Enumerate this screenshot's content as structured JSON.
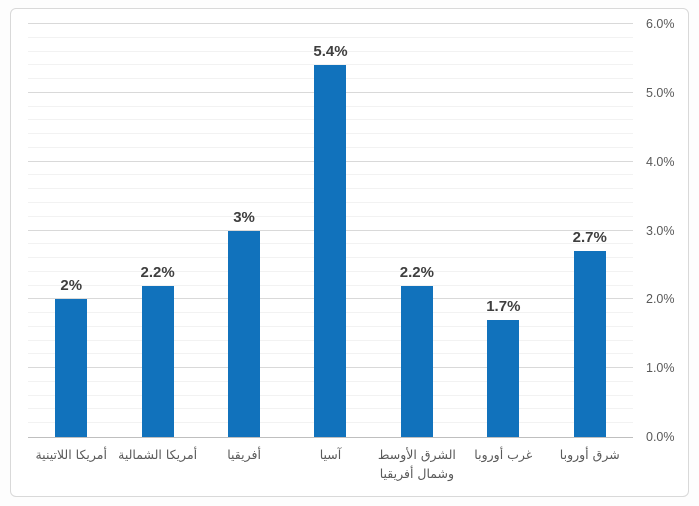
{
  "chart_data": {
    "type": "bar",
    "title": "",
    "xlabel": "",
    "ylabel": "",
    "categories": [
      "أمريكا اللاتينية",
      "أمريكا الشمالية",
      "أفريقيا",
      "آسيا",
      "الشرق الأوسط وشمال أفريقيا",
      "غرب أوروبا",
      "شرق أوروبا"
    ],
    "categories_lines": [
      [
        "أمريكا اللاتينية"
      ],
      [
        "أمريكا الشمالية"
      ],
      [
        "أفريقيا"
      ],
      [
        "آسيا"
      ],
      [
        "الشرق الأوسط",
        "وشمال أفريقيا"
      ],
      [
        "غرب أوروبا"
      ],
      [
        "شرق أوروبا"
      ]
    ],
    "values": [
      2.0,
      2.2,
      3.0,
      5.4,
      2.2,
      1.7,
      2.7
    ],
    "value_labels": [
      "2%",
      "2.2%",
      "3%",
      "5.4%",
      "2.2%",
      "1.7%",
      "2.7%"
    ],
    "ylim": [
      0,
      6
    ],
    "y_major_step": 1.0,
    "y_minor_step": 0.2,
    "y_tick_labels": [
      "0.0%",
      "1.0%",
      "2.0%",
      "3.0%",
      "4.0%",
      "5.0%",
      "6.0%"
    ],
    "y_axis_side": "right",
    "grid": "horizontal major and minor gridlines",
    "legend": "none",
    "text_direction": "rtl",
    "colors": {
      "bar": "#1172bc",
      "major_gridline": "#d9d9d9",
      "minor_gridline": "#f2f2f2",
      "axis_line": "#bfbfbf",
      "tick_label": "#595959",
      "value_label": "#3f3f3f",
      "frame_border": "#d9d9d9",
      "background": "#ffffff"
    }
  }
}
